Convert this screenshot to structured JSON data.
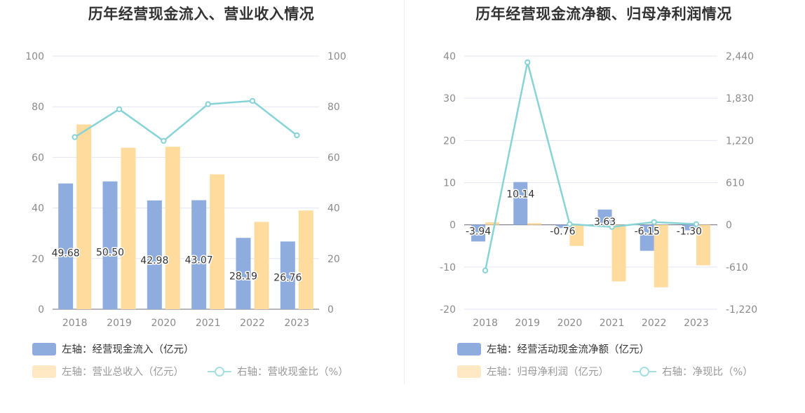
{
  "charts": [
    {
      "id": "left",
      "title": "历年经营现金流入、营业收入情况",
      "legend": [
        {
          "label": "左轴：经营现金流入（亿元）",
          "kind": "bar",
          "color": "#8eadde",
          "text_color": "#333333"
        },
        {
          "label": "左轴：营业总收入（亿元）",
          "kind": "bar",
          "color": "#ffe8c4",
          "text_color": "#999999"
        },
        {
          "label": "右轴：营收现金比（%）",
          "kind": "line",
          "color": "#a4dfe2",
          "text_color": "#999999"
        }
      ]
    },
    {
      "id": "right",
      "title": "历年经营现金流净额、归母净利润情况",
      "legend": [
        {
          "label": "左轴：经营活动现金流净额（亿元）",
          "kind": "bar",
          "color": "#8eadde",
          "text_color": "#333333"
        },
        {
          "label": "左轴：归母净利润（亿元）",
          "kind": "bar",
          "color": "#ffe8c4",
          "text_color": "#999999"
        },
        {
          "label": "右轴：净现比（%）",
          "kind": "line",
          "color": "#a4dfe2",
          "text_color": "#999999"
        }
      ]
    }
  ],
  "chart_data": [
    {
      "type": "bar",
      "title": "历年经营现金流入、营业收入情况",
      "categories": [
        "2018",
        "2019",
        "2020",
        "2021",
        "2022",
        "2023"
      ],
      "y_left": {
        "ylim": [
          0,
          100
        ],
        "ticks": [
          "0",
          "20",
          "40",
          "60",
          "80",
          "100"
        ]
      },
      "y_right": {
        "ylim": [
          0,
          100
        ],
        "ticks": [
          "0",
          "20",
          "40",
          "60",
          "80",
          "100"
        ]
      },
      "series": [
        {
          "name": "左轴：经营现金流入（亿元）",
          "type": "bar",
          "axis": "left",
          "color": "#8eadde",
          "values": [
            49.68,
            50.5,
            42.98,
            43.07,
            28.19,
            26.76
          ],
          "labels": [
            "49.68",
            "50.50",
            "42.98",
            "43.07",
            "28.19",
            "26.76"
          ]
        },
        {
          "name": "左轴：营业总收入（亿元）",
          "type": "bar",
          "axis": "left",
          "color": "#ffdc9e",
          "values": [
            73,
            63.8,
            64.2,
            53.3,
            34.5,
            39
          ]
        },
        {
          "name": "右轴：营收现金比（%）",
          "type": "line",
          "axis": "right",
          "color": "#87d3d6",
          "values": [
            68,
            79,
            66.5,
            81,
            82.3,
            68.7
          ]
        }
      ],
      "grid": true,
      "legend_position": "bottom-left"
    },
    {
      "type": "bar",
      "title": "历年经营现金流净额、归母净利润情况",
      "categories": [
        "2018",
        "2019",
        "2020",
        "2021",
        "2022",
        "2023"
      ],
      "y_left": {
        "ylim": [
          -20,
          40
        ],
        "ticks": [
          "-20",
          "-10",
          "0",
          "10",
          "20",
          "30",
          "40"
        ]
      },
      "y_right": {
        "ylim": [
          -1220,
          2440
        ],
        "ticks": [
          "-1,220",
          "-610",
          "0",
          "610",
          "1,220",
          "1,830",
          "2,440"
        ]
      },
      "series": [
        {
          "name": "左轴：经营活动现金流净额（亿元）",
          "type": "bar",
          "axis": "left",
          "color": "#8eadde",
          "values": [
            -3.94,
            10.14,
            -0.76,
            3.63,
            -6.15,
            -1.3
          ],
          "labels": [
            "-3.94",
            "10.14",
            "-0.76",
            "3.63",
            "-6.15",
            "-1.30"
          ]
        },
        {
          "name": "左轴：归母净利润（亿元）",
          "type": "bar",
          "axis": "left",
          "color": "#ffdc9e",
          "values": [
            0.6,
            0.4,
            -5,
            -13.4,
            -14.8,
            -9.6
          ]
        },
        {
          "name": "右轴：净现比（%）",
          "type": "line",
          "axis": "right",
          "color": "#87d3d6",
          "values": [
            -660,
            2350,
            10,
            -30,
            40,
            10
          ]
        }
      ],
      "grid": true,
      "legend_position": "bottom-left"
    }
  ]
}
